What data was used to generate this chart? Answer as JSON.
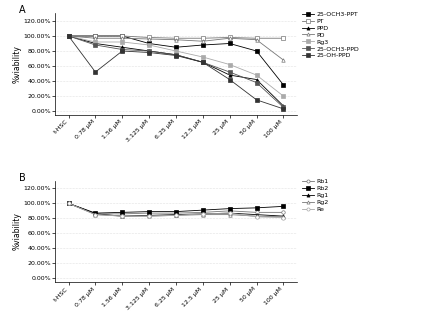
{
  "x_labels": [
    "t-HSC",
    "0.78 μM",
    "1.56 μM",
    "3.125 μM",
    "6.25 μM",
    "12.5 μM",
    "25 μM",
    "50 μM",
    "100 μM"
  ],
  "panel_A": {
    "series": [
      {
        "label": "25-OCH3-PPT",
        "marker": "s",
        "color": "#000000",
        "markerface": "#000000",
        "values": [
          100,
          100,
          100,
          90,
          85,
          88,
          90,
          80,
          35
        ]
      },
      {
        "label": "PT",
        "marker": "s",
        "color": "#777777",
        "markerface": "white",
        "values": [
          100,
          100,
          100,
          98,
          97,
          97,
          98,
          97,
          97
        ]
      },
      {
        "label": "PPD",
        "marker": "^",
        "color": "#000000",
        "markerface": "#000000",
        "values": [
          100,
          90,
          85,
          80,
          75,
          65,
          48,
          42,
          7
        ]
      },
      {
        "label": "PD",
        "marker": "^",
        "color": "#777777",
        "markerface": "white",
        "values": [
          100,
          97,
          97,
          96,
          95,
          93,
          97,
          95,
          68
        ]
      },
      {
        "label": "Rg3",
        "marker": "s",
        "color": "#aaaaaa",
        "markerface": "#aaaaaa",
        "values": [
          100,
          92,
          92,
          88,
          80,
          72,
          62,
          48,
          20
        ]
      },
      {
        "label": "25-OCH3-PPD",
        "marker": "s",
        "color": "#555555",
        "markerface": "#555555",
        "values": [
          100,
          88,
          82,
          80,
          75,
          65,
          52,
          38,
          5
        ]
      },
      {
        "label": "25-OH-PPD",
        "marker": "s",
        "color": "#333333",
        "markerface": "#333333",
        "values": [
          100,
          52,
          80,
          78,
          74,
          65,
          42,
          15,
          3
        ]
      }
    ],
    "ytick_vals": [
      0,
      20,
      40,
      60,
      80,
      100,
      120
    ],
    "ytick_labels": [
      "0.00%",
      "20.00%",
      "40.00%",
      "60.00%",
      "80.00%",
      "100.00%",
      "120.00%"
    ],
    "ylabel": "%viability",
    "panel_label": "A"
  },
  "panel_B": {
    "series": [
      {
        "label": "Rb1",
        "marker": "o",
        "color": "#777777",
        "markerface": "white",
        "values": [
          100,
          86,
          86,
          87,
          87,
          88,
          90,
          88,
          88
        ]
      },
      {
        "label": "Rb2",
        "marker": "s",
        "color": "#000000",
        "markerface": "#000000",
        "values": [
          100,
          87,
          88,
          89,
          89,
          91,
          93,
          94,
          96
        ]
      },
      {
        "label": "Rg1",
        "marker": "^",
        "color": "#000000",
        "markerface": "#000000",
        "values": [
          100,
          86,
          83,
          84,
          85,
          86,
          87,
          85,
          83
        ]
      },
      {
        "label": "Rg2",
        "marker": "^",
        "color": "#777777",
        "markerface": "white",
        "values": [
          100,
          85,
          83,
          83,
          84,
          85,
          85,
          83,
          82
        ]
      },
      {
        "label": "Re",
        "marker": "o",
        "color": "#aaaaaa",
        "markerface": "white",
        "values": [
          100,
          85,
          83,
          83,
          84,
          86,
          87,
          82,
          81
        ]
      }
    ],
    "ytick_vals": [
      0,
      20,
      40,
      60,
      80,
      100,
      120
    ],
    "ytick_labels": [
      "0.00%",
      "20.00%",
      "40.00%",
      "60.00%",
      "80.00%",
      "100.00%",
      "120.00%"
    ],
    "ylabel": "%viability",
    "panel_label": "B"
  },
  "background_color": "#ffffff",
  "grid_color": "#bbbbbb",
  "fontsize_tick": 4.5,
  "fontsize_label": 5.5,
  "fontsize_legend": 4.5,
  "fontsize_panel": 7,
  "linewidth": 0.6,
  "markersize": 2.5
}
